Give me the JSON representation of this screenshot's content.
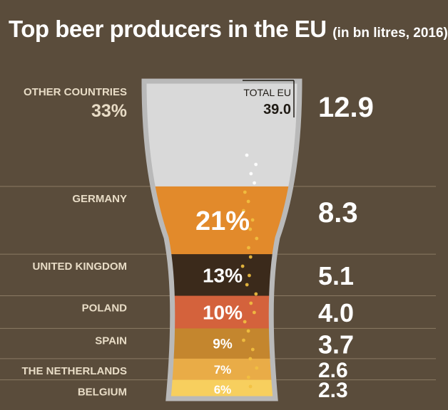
{
  "title": "Top beer producers in the EU",
  "subtitle": "(in bn litres, 2016)",
  "colors": {
    "background": "#5a4c3b",
    "label": "#e8dcc6",
    "glass": "#d9d9d9",
    "foam_dot": "#ffffff",
    "bubble": "#f2c040"
  },
  "total": {
    "label": "TOTAL EU",
    "value": "39.0"
  },
  "chart_data": {
    "type": "bar",
    "title": "Top beer producers in the EU",
    "subtitle": "(in bn litres, 2016)",
    "categories": [
      "OTHER COUNTRIES",
      "GERMANY",
      "UNITED KINGDOM",
      "POLAND",
      "SPAIN",
      "THE NETHERLANDS",
      "BELGIUM"
    ],
    "values": [
      12.9,
      8.3,
      5.1,
      4.0,
      3.7,
      2.6,
      2.3
    ],
    "value_labels": [
      "12.9",
      "8.3",
      "5.1",
      "4.0",
      "3.7",
      "2.6",
      "2.3"
    ],
    "shares": [
      "33%",
      "21%",
      "13%",
      "10%",
      "9%",
      "7%",
      "6%"
    ],
    "colors": [
      "#d9d9d9",
      "#e28a2b",
      "#3b2a1b",
      "#d4623c",
      "#c4862e",
      "#e9ac47",
      "#f7cf5e"
    ],
    "stacked": true,
    "grid": false
  }
}
